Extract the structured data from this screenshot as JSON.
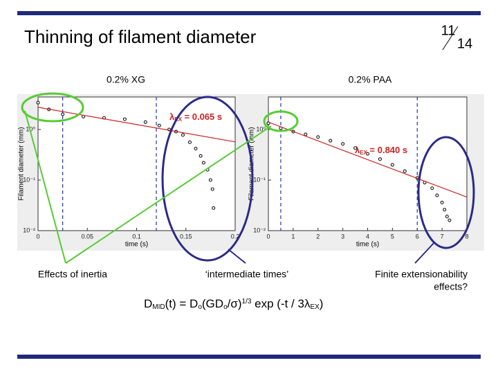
{
  "slide": {
    "title": "Thinning of filament diameter",
    "page": "11",
    "total": "14",
    "callouts": [
      "Effects of inertia",
      "‘intermediate times’",
      "Finite extensionability",
      "effects?"
    ],
    "formula": [
      {
        "text": "D",
        "pos": "base"
      },
      {
        "text": "MID",
        "pos": "sub"
      },
      {
        "text": "(t) = D",
        "pos": "base"
      },
      {
        "text": "o",
        "pos": "sub"
      },
      {
        "text": "(GD",
        "pos": "base"
      },
      {
        "text": "o",
        "pos": "sub"
      },
      {
        "text": "/σ)",
        "pos": "base"
      },
      {
        "text": "1/3",
        "pos": "sup"
      },
      {
        "text": " exp (-t / 3λ",
        "pos": "base"
      },
      {
        "text": "EX",
        "pos": "sub"
      },
      {
        "text": ")",
        "pos": "base"
      }
    ]
  },
  "chart_data": [
    {
      "type": "scatter",
      "title": "0.2% XG",
      "x_label": "time (s)",
      "y_label": "Filament diameter (mm)",
      "yscale": "log",
      "xlim": [
        0,
        0.2
      ],
      "xticks": [
        0,
        0.05,
        0.1,
        0.15,
        0.2
      ],
      "ylim": [
        0.01,
        4.4
      ],
      "yticks": [
        {
          "value": 0.01,
          "label": "10⁻²"
        },
        {
          "value": 0.1,
          "label": "10⁻¹"
        },
        {
          "value": 1,
          "label": "10⁰"
        }
      ],
      "reference_lines": [
        0.025,
        0.12
      ],
      "reference_color": "#2233aa",
      "annotation": {
        "symbol": "λ",
        "subscript": "EX",
        "text": " = 0.065 s",
        "color": "#cc2222"
      },
      "series": [
        {
          "style": "markers",
          "color": "#000000",
          "x": [
            0,
            0.011,
            0.025,
            0.046,
            0.067,
            0.088,
            0.109,
            0.123,
            0.133,
            0.14,
            0.147,
            0.154,
            0.16,
            0.165,
            0.168,
            0.172,
            0.175,
            0.177,
            0.178
          ],
          "values": [
            3.4,
            2.5,
            2.0,
            1.8,
            1.7,
            1.6,
            1.4,
            1.2,
            1.0,
            0.91,
            0.78,
            0.56,
            0.42,
            0.3,
            0.22,
            0.16,
            0.1,
            0.066,
            0.028
          ]
        },
        {
          "style": "line",
          "color": "#cc2222",
          "x": [
            0,
            0.2
          ],
          "values": [
            2.75,
            0.57
          ]
        }
      ]
    },
    {
      "type": "scatter",
      "title": "0.2% PAA",
      "x_label": "time (s)",
      "y_label": "Filament diameter (mm)",
      "yscale": "log",
      "xlim": [
        0,
        8
      ],
      "xticks": [
        0,
        1,
        2,
        3,
        4,
        5,
        6,
        7,
        8
      ],
      "ylim": [
        0.01,
        4.4
      ],
      "yticks": [
        {
          "value": 0.01,
          "label": "10⁻²"
        },
        {
          "value": 0.1,
          "label": "10⁻¹"
        },
        {
          "value": 1,
          "label": "10⁰"
        }
      ],
      "reference_lines": [
        0.5,
        6
      ],
      "reference_color": "#2233aa",
      "annotation": {
        "symbol": "λ",
        "subscript": "EX",
        "text": " = 0.840 s",
        "color": "#cc2222"
      },
      "series": [
        {
          "style": "markers",
          "color": "#000000",
          "x": [
            0,
            0.5,
            1,
            1.5,
            2,
            2.5,
            3,
            3.5,
            4,
            4.5,
            5,
            5.5,
            6,
            6.3,
            6.6,
            6.8,
            7,
            7.1,
            7.2,
            7.3
          ],
          "values": [
            1.33,
            1.06,
            0.91,
            0.8,
            0.71,
            0.6,
            0.52,
            0.43,
            0.33,
            0.26,
            0.2,
            0.15,
            0.11,
            0.089,
            0.069,
            0.05,
            0.036,
            0.026,
            0.019,
            0.016
          ]
        },
        {
          "style": "line",
          "color": "#cc2222",
          "x": [
            0,
            8
          ],
          "values": [
            1.4,
            0.046
          ]
        }
      ]
    }
  ]
}
